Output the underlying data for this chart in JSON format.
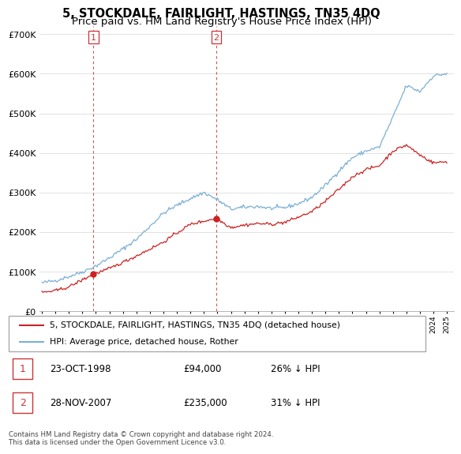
{
  "title": "5, STOCKDALE, FAIRLIGHT, HASTINGS, TN35 4DQ",
  "subtitle": "Price paid vs. HM Land Registry's House Price Index (HPI)",
  "ylim": [
    0,
    720000
  ],
  "yticks": [
    0,
    100000,
    200000,
    300000,
    400000,
    500000,
    600000,
    700000
  ],
  "ytick_labels": [
    "£0",
    "£100K",
    "£200K",
    "£300K",
    "£400K",
    "£500K",
    "£600K",
    "£700K"
  ],
  "sale1_date": 1998.81,
  "sale1_price": 94000,
  "sale1_label": "1",
  "sale2_date": 2007.91,
  "sale2_price": 235000,
  "sale2_label": "2",
  "hpi_color": "#7bafd4",
  "price_color": "#cc2222",
  "vline_color": "#cc3333",
  "grid_color": "#dddddd",
  "legend_entry1": "5, STOCKDALE, FAIRLIGHT, HASTINGS, TN35 4DQ (detached house)",
  "legend_entry2": "HPI: Average price, detached house, Rother",
  "table_row1": [
    "1",
    "23-OCT-1998",
    "£94,000",
    "26% ↓ HPI"
  ],
  "table_row2": [
    "2",
    "28-NOV-2007",
    "£235,000",
    "31% ↓ HPI"
  ],
  "footer": "Contains HM Land Registry data © Crown copyright and database right 2024.\nThis data is licensed under the Open Government Licence v3.0.",
  "title_fontsize": 10.5,
  "subtitle_fontsize": 9.5,
  "hpi_waypoints_x": [
    1995,
    1996,
    1997,
    1998,
    1999,
    2000,
    2001,
    2002,
    2003,
    2004,
    2005,
    2006,
    2007,
    2008,
    2009,
    2010,
    2011,
    2012,
    2013,
    2014,
    2015,
    2016,
    2017,
    2018,
    2019,
    2020,
    2021,
    2022,
    2023,
    2024,
    2025
  ],
  "hpi_waypoints_y": [
    72000,
    78000,
    88000,
    100000,
    115000,
    135000,
    158000,
    182000,
    215000,
    248000,
    268000,
    285000,
    300000,
    282000,
    258000,
    263000,
    265000,
    260000,
    262000,
    272000,
    288000,
    318000,
    355000,
    388000,
    405000,
    415000,
    490000,
    570000,
    555000,
    595000,
    600000
  ],
  "price_waypoints_x": [
    1995,
    1996,
    1997,
    1998.81,
    2000,
    2002,
    2004,
    2005,
    2006,
    2007.91,
    2009,
    2010,
    2011,
    2012,
    2013,
    2014,
    2015,
    2016,
    2017,
    2018,
    2019,
    2020,
    2021,
    2022,
    2023,
    2024,
    2025
  ],
  "price_waypoints_y": [
    48000,
    52000,
    62000,
    94000,
    108000,
    140000,
    175000,
    198000,
    220000,
    235000,
    212000,
    218000,
    222000,
    220000,
    225000,
    238000,
    252000,
    278000,
    308000,
    340000,
    358000,
    368000,
    405000,
    420000,
    395000,
    375000,
    378000
  ],
  "noise_seed": 42,
  "hpi_noise": 2500,
  "price_noise": 2000
}
